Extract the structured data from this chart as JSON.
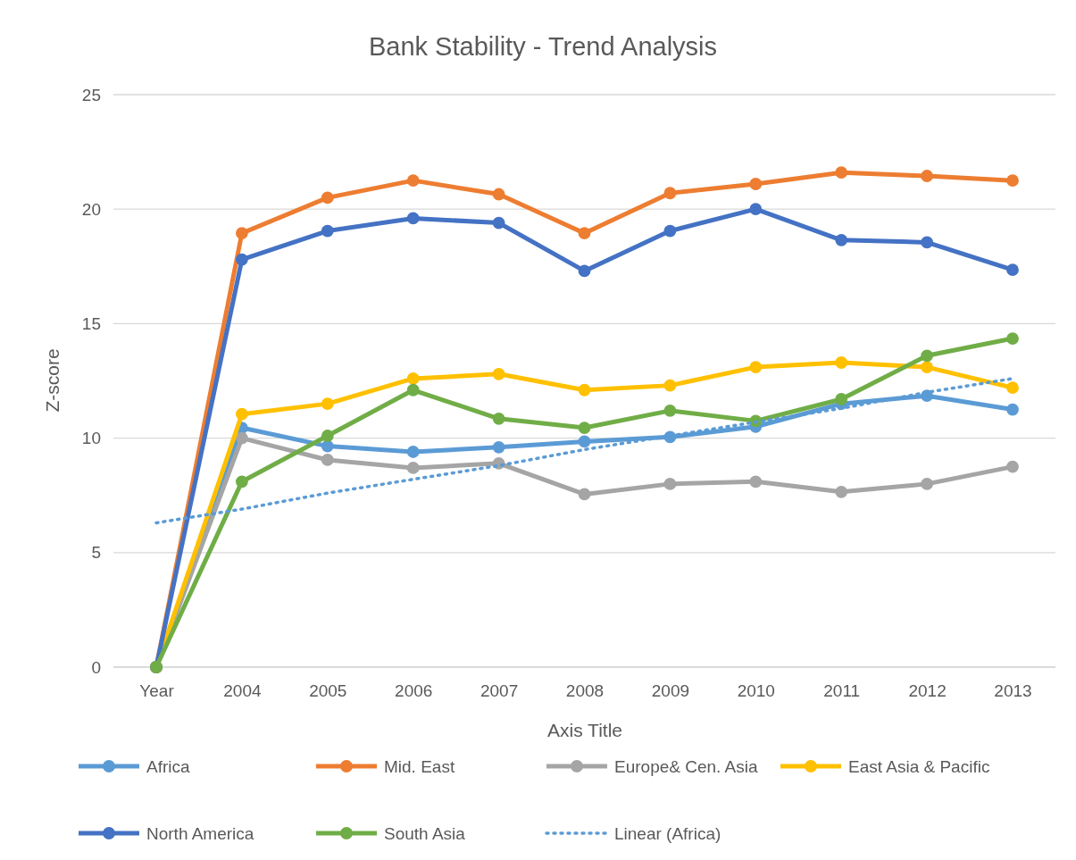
{
  "chart_data": {
    "type": "line",
    "title": "Bank Stability - Trend Analysis",
    "xlabel": "Axis Title",
    "ylabel": "Z-score",
    "categories": [
      "Year",
      "2004",
      "2005",
      "2006",
      "2007",
      "2008",
      "2009",
      "2010",
      "2011",
      "2012",
      "2013"
    ],
    "ylim": [
      0,
      25
    ],
    "yticks": [
      0,
      5,
      10,
      15,
      20,
      25
    ],
    "grid": "y",
    "legend": "bottom",
    "marker": "circle",
    "line_style": "solid",
    "series": [
      {
        "name": "Africa",
        "color": "#5b9bd5",
        "values": [
          0,
          10.45,
          9.65,
          9.4,
          9.6,
          9.85,
          10.05,
          10.5,
          11.5,
          11.85,
          11.25
        ]
      },
      {
        "name": "Mid. East",
        "color": "#ed7d31",
        "values": [
          0,
          18.95,
          20.5,
          21.25,
          20.65,
          18.95,
          20.7,
          21.1,
          21.6,
          21.45,
          21.25
        ]
      },
      {
        "name": "Europe& Cen. Asia",
        "color": "#a5a5a5",
        "values": [
          0,
          10.0,
          9.05,
          8.7,
          8.9,
          7.55,
          8.0,
          8.1,
          7.65,
          8.0,
          8.75
        ]
      },
      {
        "name": "East Asia & Pacific",
        "color": "#ffc000",
        "values": [
          0,
          11.05,
          11.5,
          12.6,
          12.8,
          12.1,
          12.3,
          13.1,
          13.3,
          13.1,
          12.2
        ]
      },
      {
        "name": "North America",
        "color": "#4472c4",
        "values": [
          0,
          17.8,
          19.05,
          19.6,
          19.4,
          17.3,
          19.05,
          20.0,
          18.65,
          18.55,
          17.35
        ]
      },
      {
        "name": "South Asia",
        "color": "#70ad47",
        "values": [
          0,
          8.1,
          10.1,
          12.1,
          10.85,
          10.45,
          11.2,
          10.75,
          11.7,
          13.6,
          14.35
        ]
      },
      {
        "name": "Linear (Africa)",
        "color": "#5b9bd5",
        "type": "line",
        "values": [
          6.3,
          6.9,
          7.6,
          8.2,
          8.8,
          9.5,
          10.1,
          10.7,
          11.3,
          12.0,
          12.6
        ],
        "marker": "none",
        "line_style": "dotted"
      }
    ]
  }
}
